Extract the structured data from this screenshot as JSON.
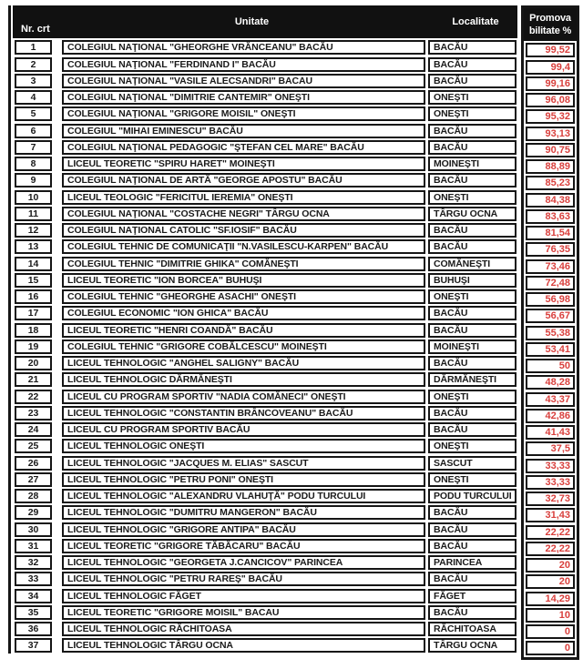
{
  "table": {
    "headers": {
      "nr": "Nr. crt",
      "unitate": "Unitate",
      "localitate": "Localitate",
      "promovabilitate_line1": "Promova",
      "promovabilitate_line2": "bilitate %"
    },
    "rows": [
      {
        "nr": "1",
        "unitate": "COLEGIUL NAŢIONAL \"GHEORGHE VRĂNCEANU\" BACĂU",
        "localitate": "BACĂU",
        "promovabilitate": "99,52"
      },
      {
        "nr": "2",
        "unitate": "COLEGIUL NAŢIONAL \"FERDINAND I\" BACĂU",
        "localitate": "BACĂU",
        "promovabilitate": "99,4"
      },
      {
        "nr": "3",
        "unitate": "COLEGIUL NAŢIONAL \"VASILE ALECSANDRI\" BACAU",
        "localitate": "BACĂU",
        "promovabilitate": "99,16"
      },
      {
        "nr": "4",
        "unitate": "COLEGIUL NAŢIONAL \"DIMITRIE CANTEMIR\" ONEŞTI",
        "localitate": "ONEŞTI",
        "promovabilitate": "96,08"
      },
      {
        "nr": "5",
        "unitate": "COLEGIUL NAŢIONAL \"GRIGORE MOISIL\" ONEŞTI",
        "localitate": "ONEŞTI",
        "promovabilitate": "95,32"
      },
      {
        "nr": "6",
        "unitate": "COLEGIUL \"MIHAI EMINESCU\" BACĂU",
        "localitate": "BACĂU",
        "promovabilitate": "93,13"
      },
      {
        "nr": "7",
        "unitate": "COLEGIUL NAŢIONAL PEDAGOGIC \"ŞTEFAN CEL MARE\" BACĂU",
        "localitate": "BACĂU",
        "promovabilitate": "90,75"
      },
      {
        "nr": "8",
        "unitate": "LICEUL TEORETIC \"SPIRU HARET\" MOINEŞTI",
        "localitate": "MOINEŞTI",
        "promovabilitate": "88,89"
      },
      {
        "nr": "9",
        "unitate": "COLEGIUL NAŢIONAL DE ARTĂ \"GEORGE APOSTU\" BACĂU",
        "localitate": "BACĂU",
        "promovabilitate": "85,23"
      },
      {
        "nr": "10",
        "unitate": "LICEUL TEOLOGIC \"FERICITUL IEREMIA\" ONEŞTI",
        "localitate": "ONEŞTI",
        "promovabilitate": "84,38"
      },
      {
        "nr": "11",
        "unitate": "COLEGIUL NAŢIONAL \"COSTACHE NEGRI\" TÂRGU OCNA",
        "localitate": "TÂRGU OCNA",
        "promovabilitate": "83,63"
      },
      {
        "nr": "12",
        "unitate": "COLEGIUL NAŢIONAL CATOLIC \"SF.IOSIF\" BACĂU",
        "localitate": "BACĂU",
        "promovabilitate": "81,54"
      },
      {
        "nr": "13",
        "unitate": "COLEGIUL TEHNIC DE COMUNICAŢII \"N.VASILESCU-KARPEN\" BACĂU",
        "localitate": "BACĂU",
        "promovabilitate": "76,35"
      },
      {
        "nr": "14",
        "unitate": "COLEGIUL TEHNIC \"DIMITRIE GHIKA\" COMĂNEŞTI",
        "localitate": "COMĂNEŞTI",
        "promovabilitate": "73,46"
      },
      {
        "nr": "15",
        "unitate": "LICEUL TEORETIC \"ION BORCEA\" BUHUŞI",
        "localitate": "BUHUŞI",
        "promovabilitate": "72,48"
      },
      {
        "nr": "16",
        "unitate": "COLEGIUL TEHNIC \"GHEORGHE ASACHI\" ONEŞTI",
        "localitate": "ONEŞTI",
        "promovabilitate": "56,98"
      },
      {
        "nr": "17",
        "unitate": "COLEGIUL ECONOMIC \"ION GHICA\" BACĂU",
        "localitate": "BACĂU",
        "promovabilitate": "56,67"
      },
      {
        "nr": "18",
        "unitate": "LICEUL TEORETIC \"HENRI COANDĂ\" BACĂU",
        "localitate": "BACĂU",
        "promovabilitate": "55,38"
      },
      {
        "nr": "19",
        "unitate": "COLEGIUL TEHNIC \"GRIGORE COBĂLCESCU\" MOINEŞTI",
        "localitate": "MOINEŞTI",
        "promovabilitate": "53,41"
      },
      {
        "nr": "20",
        "unitate": "LICEUL TEHNOLOGIC \"ANGHEL SALIGNY\" BACĂU",
        "localitate": "BACĂU",
        "promovabilitate": "50"
      },
      {
        "nr": "21",
        "unitate": "LICEUL TEHNOLOGIC DĂRMĂNEŞTI",
        "localitate": "DĂRMĂNEŞTI",
        "promovabilitate": "48,28"
      },
      {
        "nr": "22",
        "unitate": "LICEUL CU PROGRAM SPORTIV \"NADIA COMĂNECI\" ONEŞTI",
        "localitate": "ONEŞTI",
        "promovabilitate": "43,37"
      },
      {
        "nr": "23",
        "unitate": "LICEUL TEHNOLOGIC \"CONSTANTIN BRÂNCOVEANU\" BACĂU",
        "localitate": "BACĂU",
        "promovabilitate": "42,86"
      },
      {
        "nr": "24",
        "unitate": "LICEUL CU PROGRAM SPORTIV BACĂU",
        "localitate": "BACĂU",
        "promovabilitate": "41,43"
      },
      {
        "nr": "25",
        "unitate": "LICEUL TEHNOLOGIC ONEŞTI",
        "localitate": "ONEŞTI",
        "promovabilitate": "37,5"
      },
      {
        "nr": "26",
        "unitate": "LICEUL TEHNOLOGIC \"JACQUES M. ELIAS\" SASCUT",
        "localitate": "SASCUT",
        "promovabilitate": "33,33"
      },
      {
        "nr": "27",
        "unitate": "LICEUL TEHNOLOGIC \"PETRU PONI\" ONEŞTI",
        "localitate": "ONEŞTI",
        "promovabilitate": "33,33"
      },
      {
        "nr": "28",
        "unitate": "LICEUL TEHNOLOGIC \"ALEXANDRU VLAHUŢĂ\" PODU TURCULUI",
        "localitate": "PODU TURCULUI",
        "promovabilitate": "32,73"
      },
      {
        "nr": "29",
        "unitate": "LICEUL TEHNOLOGIC \"DUMITRU MANGERON\" BACĂU",
        "localitate": "BACĂU",
        "promovabilitate": "31,43"
      },
      {
        "nr": "30",
        "unitate": "LICEUL TEHNOLOGIC \"GRIGORE ANTIPA\" BACĂU",
        "localitate": "BACĂU",
        "promovabilitate": "22,22"
      },
      {
        "nr": "31",
        "unitate": "LICEUL TEORETIC \"GRIGORE TĂBĂCARU\" BACĂU",
        "localitate": "BACĂU",
        "promovabilitate": "22,22"
      },
      {
        "nr": "32",
        "unitate": "LICEUL TEHNOLOGIC \"GEORGETA J.CANCICOV\" PARINCEA",
        "localitate": "PARINCEA",
        "promovabilitate": "20"
      },
      {
        "nr": "33",
        "unitate": "LICEUL TEHNOLOGIC \"PETRU RAREŞ\" BACĂU",
        "localitate": "BACĂU",
        "promovabilitate": "20"
      },
      {
        "nr": "34",
        "unitate": "LICEUL TEHNOLOGIC FĂGET",
        "localitate": "FĂGET",
        "promovabilitate": "14,29"
      },
      {
        "nr": "35",
        "unitate": "LICEUL TEORETIC \"GRIGORE MOISIL\" BACAU",
        "localitate": "BACĂU",
        "promovabilitate": "10"
      },
      {
        "nr": "36",
        "unitate": "LICEUL TEHNOLOGIC RĂCHITOASA",
        "localitate": "RĂCHITOASA",
        "promovabilitate": "0"
      },
      {
        "nr": "37",
        "unitate": "LICEUL TEHNOLOGIC TÂRGU OCNA",
        "localitate": "TÂRGU OCNA",
        "promovabilitate": "0"
      }
    ]
  },
  "colors": {
    "value_red": "#d9403d",
    "header_bg": "#111111",
    "ink": "#151515"
  }
}
